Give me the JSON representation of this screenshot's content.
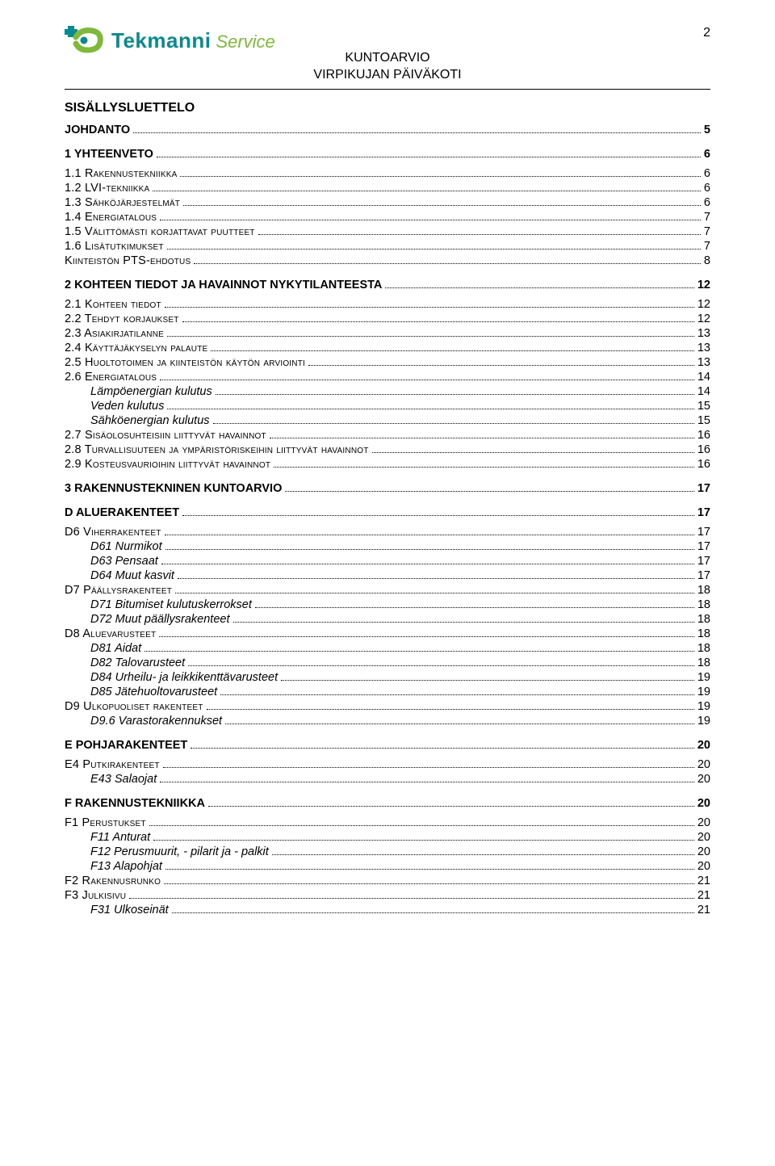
{
  "page_number": "2",
  "logo": {
    "main": "Tekmanni",
    "sub": "Service"
  },
  "doc_title_line1": "KUNTOARVIO",
  "doc_title_line2": "VIRPIKUJAN PÄIVÄKOTI",
  "toc_title": "SISÄLLYSLUETTELO",
  "colors": {
    "logo_main": "#0a8a8f",
    "logo_sub": "#7fb93a",
    "logo_swoosh": "#7fb93a",
    "text": "#000000",
    "background": "#ffffff"
  },
  "fonts": {
    "family": "Arial",
    "body_pt": 11,
    "title_pt": 12,
    "logo_main_pt": 20,
    "logo_sub_pt": 17
  },
  "toc": [
    {
      "label": "JOHDANTO",
      "page": "5",
      "level": 0,
      "style": "bold",
      "gap": "m"
    },
    {
      "label": "1    YHTEENVETO",
      "page": "6",
      "level": 0,
      "style": "bold",
      "gap": "l"
    },
    {
      "label": "1.1 Rakennustekniikka",
      "page": "6",
      "level": 0,
      "style": "sc",
      "gap": "m"
    },
    {
      "label": "1.2 LVI-tekniikka",
      "page": "6",
      "level": 0,
      "style": "sc"
    },
    {
      "label": "1.3 Sähköjärjestelmät",
      "page": "6",
      "level": 0,
      "style": "sc"
    },
    {
      "label": "1.4 Energiatalous",
      "page": "7",
      "level": 0,
      "style": "sc"
    },
    {
      "label": "1.5 Välittömästi korjattavat puutteet",
      "page": "7",
      "level": 0,
      "style": "sc"
    },
    {
      "label": "1.6 Lisätutkimukset",
      "page": "7",
      "level": 0,
      "style": "sc"
    },
    {
      "label": "Kiinteistön PTS-ehdotus",
      "page": "8",
      "level": 0,
      "style": "sc"
    },
    {
      "label": "2    KOHTEEN TIEDOT JA HAVAINNOT NYKYTILANTEESTA",
      "page": "12",
      "level": 0,
      "style": "bold",
      "gap": "l"
    },
    {
      "label": "2.1 Kohteen tiedot",
      "page": "12",
      "level": 0,
      "style": "sc",
      "gap": "m"
    },
    {
      "label": "2.2 Tehdyt korjaukset",
      "page": "12",
      "level": 0,
      "style": "sc"
    },
    {
      "label": "2.3 Asiakirjatilanne",
      "page": "13",
      "level": 0,
      "style": "sc"
    },
    {
      "label": "2.4 Käyttäjäkyselyn palaute",
      "page": "13",
      "level": 0,
      "style": "sc"
    },
    {
      "label": "2.5 Huoltotoimen ja kiinteistön käytön arviointi",
      "page": "13",
      "level": 0,
      "style": "sc"
    },
    {
      "label": "2.6 Energiatalous",
      "page": "14",
      "level": 0,
      "style": "sc"
    },
    {
      "label": "Lämpöenergian kulutus",
      "page": "14",
      "level": 1,
      "style": "italic"
    },
    {
      "label": "Veden kulutus",
      "page": "15",
      "level": 1,
      "style": "italic"
    },
    {
      "label": "Sähköenergian kulutus",
      "page": "15",
      "level": 1,
      "style": "italic"
    },
    {
      "label": "2.7 Sisäolosuhteisiin liittyvät havainnot",
      "page": "16",
      "level": 0,
      "style": "sc"
    },
    {
      "label": "2.8 Turvallisuuteen ja ympäristöriskeihin liittyvät havainnot",
      "page": "16",
      "level": 0,
      "style": "sc"
    },
    {
      "label": "2.9 Kosteusvaurioihin liittyvät havainnot",
      "page": "16",
      "level": 0,
      "style": "sc"
    },
    {
      "label": "3    RAKENNUSTEKNINEN KUNTOARVIO",
      "page": "17",
      "level": 0,
      "style": "bold",
      "gap": "l"
    },
    {
      "label": "D  ALUERAKENTEET",
      "page": "17",
      "level": 0,
      "style": "bold",
      "gap": "l"
    },
    {
      "label": "D6 Viherrakenteet",
      "page": "17",
      "level": 0,
      "style": "sc",
      "gap": "m"
    },
    {
      "label": "D61 Nurmikot",
      "page": "17",
      "level": 1,
      "style": "italic"
    },
    {
      "label": "D63 Pensaat",
      "page": "17",
      "level": 1,
      "style": "italic"
    },
    {
      "label": "D64 Muut kasvit",
      "page": "17",
      "level": 1,
      "style": "italic"
    },
    {
      "label": "D7 Päällysrakenteet",
      "page": "18",
      "level": 0,
      "style": "sc"
    },
    {
      "label": "D71 Bitumiset kulutuskerrokset",
      "page": "18",
      "level": 1,
      "style": "italic"
    },
    {
      "label": "D72 Muut  päällysrakenteet",
      "page": "18",
      "level": 1,
      "style": "italic"
    },
    {
      "label": "D8 Aluevarusteet",
      "page": "18",
      "level": 0,
      "style": "sc"
    },
    {
      "label": "D81 Aidat",
      "page": "18",
      "level": 1,
      "style": "italic"
    },
    {
      "label": "D82 Talovarusteet",
      "page": "18",
      "level": 1,
      "style": "italic"
    },
    {
      "label": "D84 Urheilu- ja leikkikenttävarusteet",
      "page": "19",
      "level": 1,
      "style": "italic"
    },
    {
      "label": "D85 Jätehuoltovarusteet",
      "page": "19",
      "level": 1,
      "style": "italic"
    },
    {
      "label": "D9 Ulkopuoliset rakenteet",
      "page": "19",
      "level": 0,
      "style": "sc"
    },
    {
      "label": "D9.6 Varastorakennukset",
      "page": "19",
      "level": 1,
      "style": "italic"
    },
    {
      "label": "E POHJARAKENTEET",
      "page": "20",
      "level": 0,
      "style": "bold",
      "gap": "l"
    },
    {
      "label": "E4 Putkirakenteet",
      "page": "20",
      "level": 0,
      "style": "sc",
      "gap": "m"
    },
    {
      "label": "E43 Salaojat",
      "page": "20",
      "level": 1,
      "style": "italic"
    },
    {
      "label": "F RAKENNUSTEKNIIKKA",
      "page": "20",
      "level": 0,
      "style": "bold",
      "gap": "l"
    },
    {
      "label": "F1 Perustukset",
      "page": "20",
      "level": 0,
      "style": "sc",
      "gap": "m"
    },
    {
      "label": "F11 Anturat",
      "page": "20",
      "level": 1,
      "style": "italic"
    },
    {
      "label": "F12 Perusmuurit, - pilarit ja - palkit",
      "page": "20",
      "level": 1,
      "style": "italic"
    },
    {
      "label": "F13 Alapohjat",
      "page": "20",
      "level": 1,
      "style": "italic"
    },
    {
      "label": "F2 Rakennusrunko",
      "page": "21",
      "level": 0,
      "style": "sc"
    },
    {
      "label": "F3 Julkisivu",
      "page": "21",
      "level": 0,
      "style": "sc"
    },
    {
      "label": "F31 Ulkoseinät",
      "page": "21",
      "level": 1,
      "style": "italic"
    }
  ]
}
